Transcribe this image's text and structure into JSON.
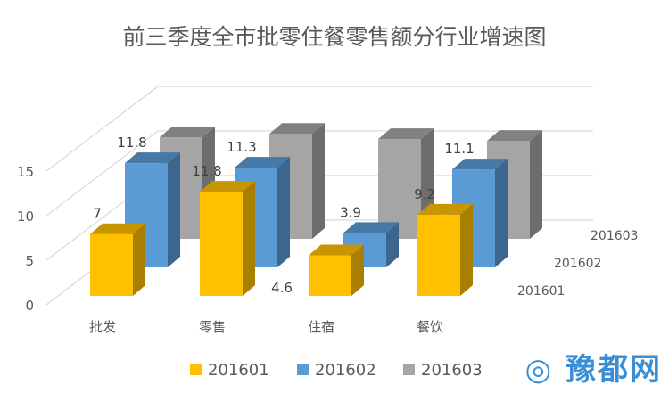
{
  "chart_data": {
    "type": "bar",
    "subtype": "3d-clustered-depth",
    "title": "前三季度全市批零住餐零售额分行业增速图",
    "categories": [
      "批发",
      "零售",
      "住宿",
      "餐饮"
    ],
    "series": [
      {
        "name": "201601",
        "color": "#FFC000",
        "values": [
          7,
          11.8,
          4.6,
          9.2
        ],
        "labels": [
          "7",
          "11.8",
          "4.6",
          "9.2"
        ]
      },
      {
        "name": "201602",
        "color": "#5B9BD5",
        "values": [
          11.8,
          11.3,
          3.9,
          11.1
        ],
        "labels": [
          "11.8",
          "11.3",
          "3.9",
          "11.1"
        ]
      },
      {
        "name": "201603",
        "color": "#A5A5A5",
        "values": [
          11.5,
          11.9,
          11.3,
          11.1
        ],
        "labels": []
      }
    ],
    "yticks": [
      "0",
      "5",
      "10",
      "15"
    ],
    "ylim": [
      0,
      15
    ],
    "grid": true,
    "legend": "bottom"
  },
  "watermark": "豫都网"
}
